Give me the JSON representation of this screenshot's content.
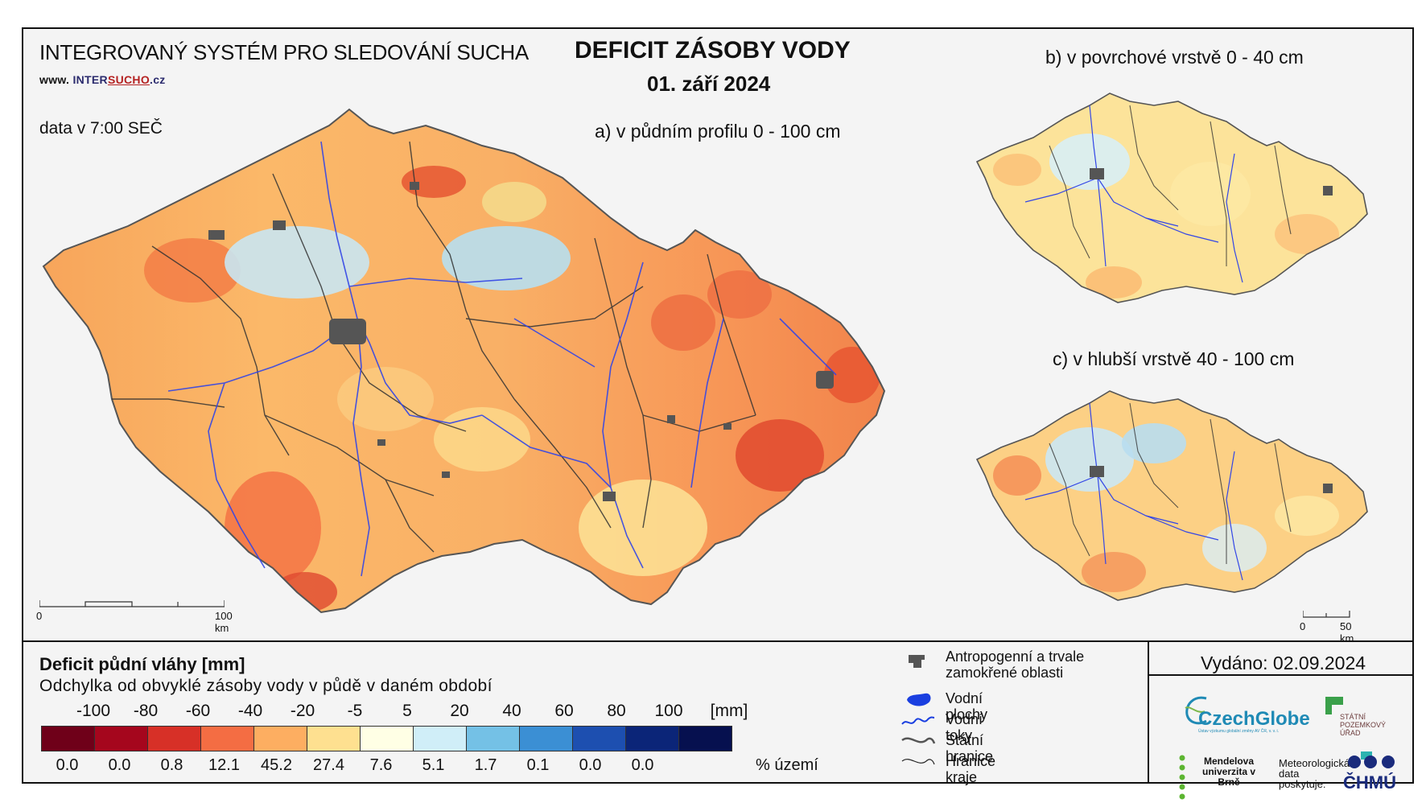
{
  "header": {
    "system_title": "INTEGROVANÝ SYSTÉM PRO SLEDOVÁNÍ SUCHA",
    "website_prefix": "www.",
    "website_name_1": "INTER",
    "website_name_2": "SUCHO",
    "website_suffix": ".cz",
    "data_time": "data v 7:00 SEČ",
    "main_title": "DEFICIT ZÁSOBY VODY",
    "date": "01. září 2024"
  },
  "maps": {
    "a_label": "a) v půdním profilu 0 - 100 cm",
    "b_label": "b) v povrchové vrstvě 0 - 40 cm",
    "c_label": "c) v hlubší vrstvě 40 - 100 cm",
    "scale_a_start": "0",
    "scale_a_end": "100 km",
    "scale_b_start": "0",
    "scale_b_end": "50 km"
  },
  "legend": {
    "title": "Deficit půdní vláhy  [mm]",
    "subtitle": "Odchylka od obvyklé zásoby vody v půdě v daném období",
    "unit": "[mm]",
    "ticks": [
      "-100",
      "-80",
      "-60",
      "-40",
      "-20",
      "-5",
      "5",
      "20",
      "40",
      "60",
      "80",
      "100"
    ],
    "colors": [
      "#6f0019",
      "#a5061d",
      "#d73027",
      "#f46d43",
      "#fdae61",
      "#fee090",
      "#ffffe5",
      "#d0eef8",
      "#74c1e6",
      "#3b8fd4",
      "#1d4fb0",
      "#0b2578",
      "#06104f"
    ],
    "percentages": [
      "0.0",
      "0.0",
      "0.8",
      "12.1",
      "45.2",
      "27.4",
      "7.6",
      "5.1",
      "1.7",
      "0.1",
      "0.0",
      "0.0"
    ],
    "pct_unit": "% území"
  },
  "map_legend": {
    "items": [
      {
        "label": "Antropogenní a trvale zamokřené oblasti",
        "icon": "urban-area-icon"
      },
      {
        "label": "Vodní plochy",
        "icon": "water-body-icon"
      },
      {
        "label": "Vodní toky",
        "icon": "river-icon"
      },
      {
        "label": "Státní hranice",
        "icon": "state-border-icon"
      },
      {
        "label": "Hranice kraje",
        "icon": "region-border-icon"
      }
    ]
  },
  "footer": {
    "issued": "Vydáno: 02.09.2024",
    "czechglobe": "CzechGlobe",
    "czechglobe_sub": "Ústav výzkumu globální změny AV ČR, v. v. i.",
    "spu": "STÁTNÍ POZEMKOVÝ ÚŘAD",
    "mendel": "Mendelova univerzita v Brně",
    "meteo": "Meteorologická data poskytuje:",
    "chmu": "ČHMÚ"
  }
}
